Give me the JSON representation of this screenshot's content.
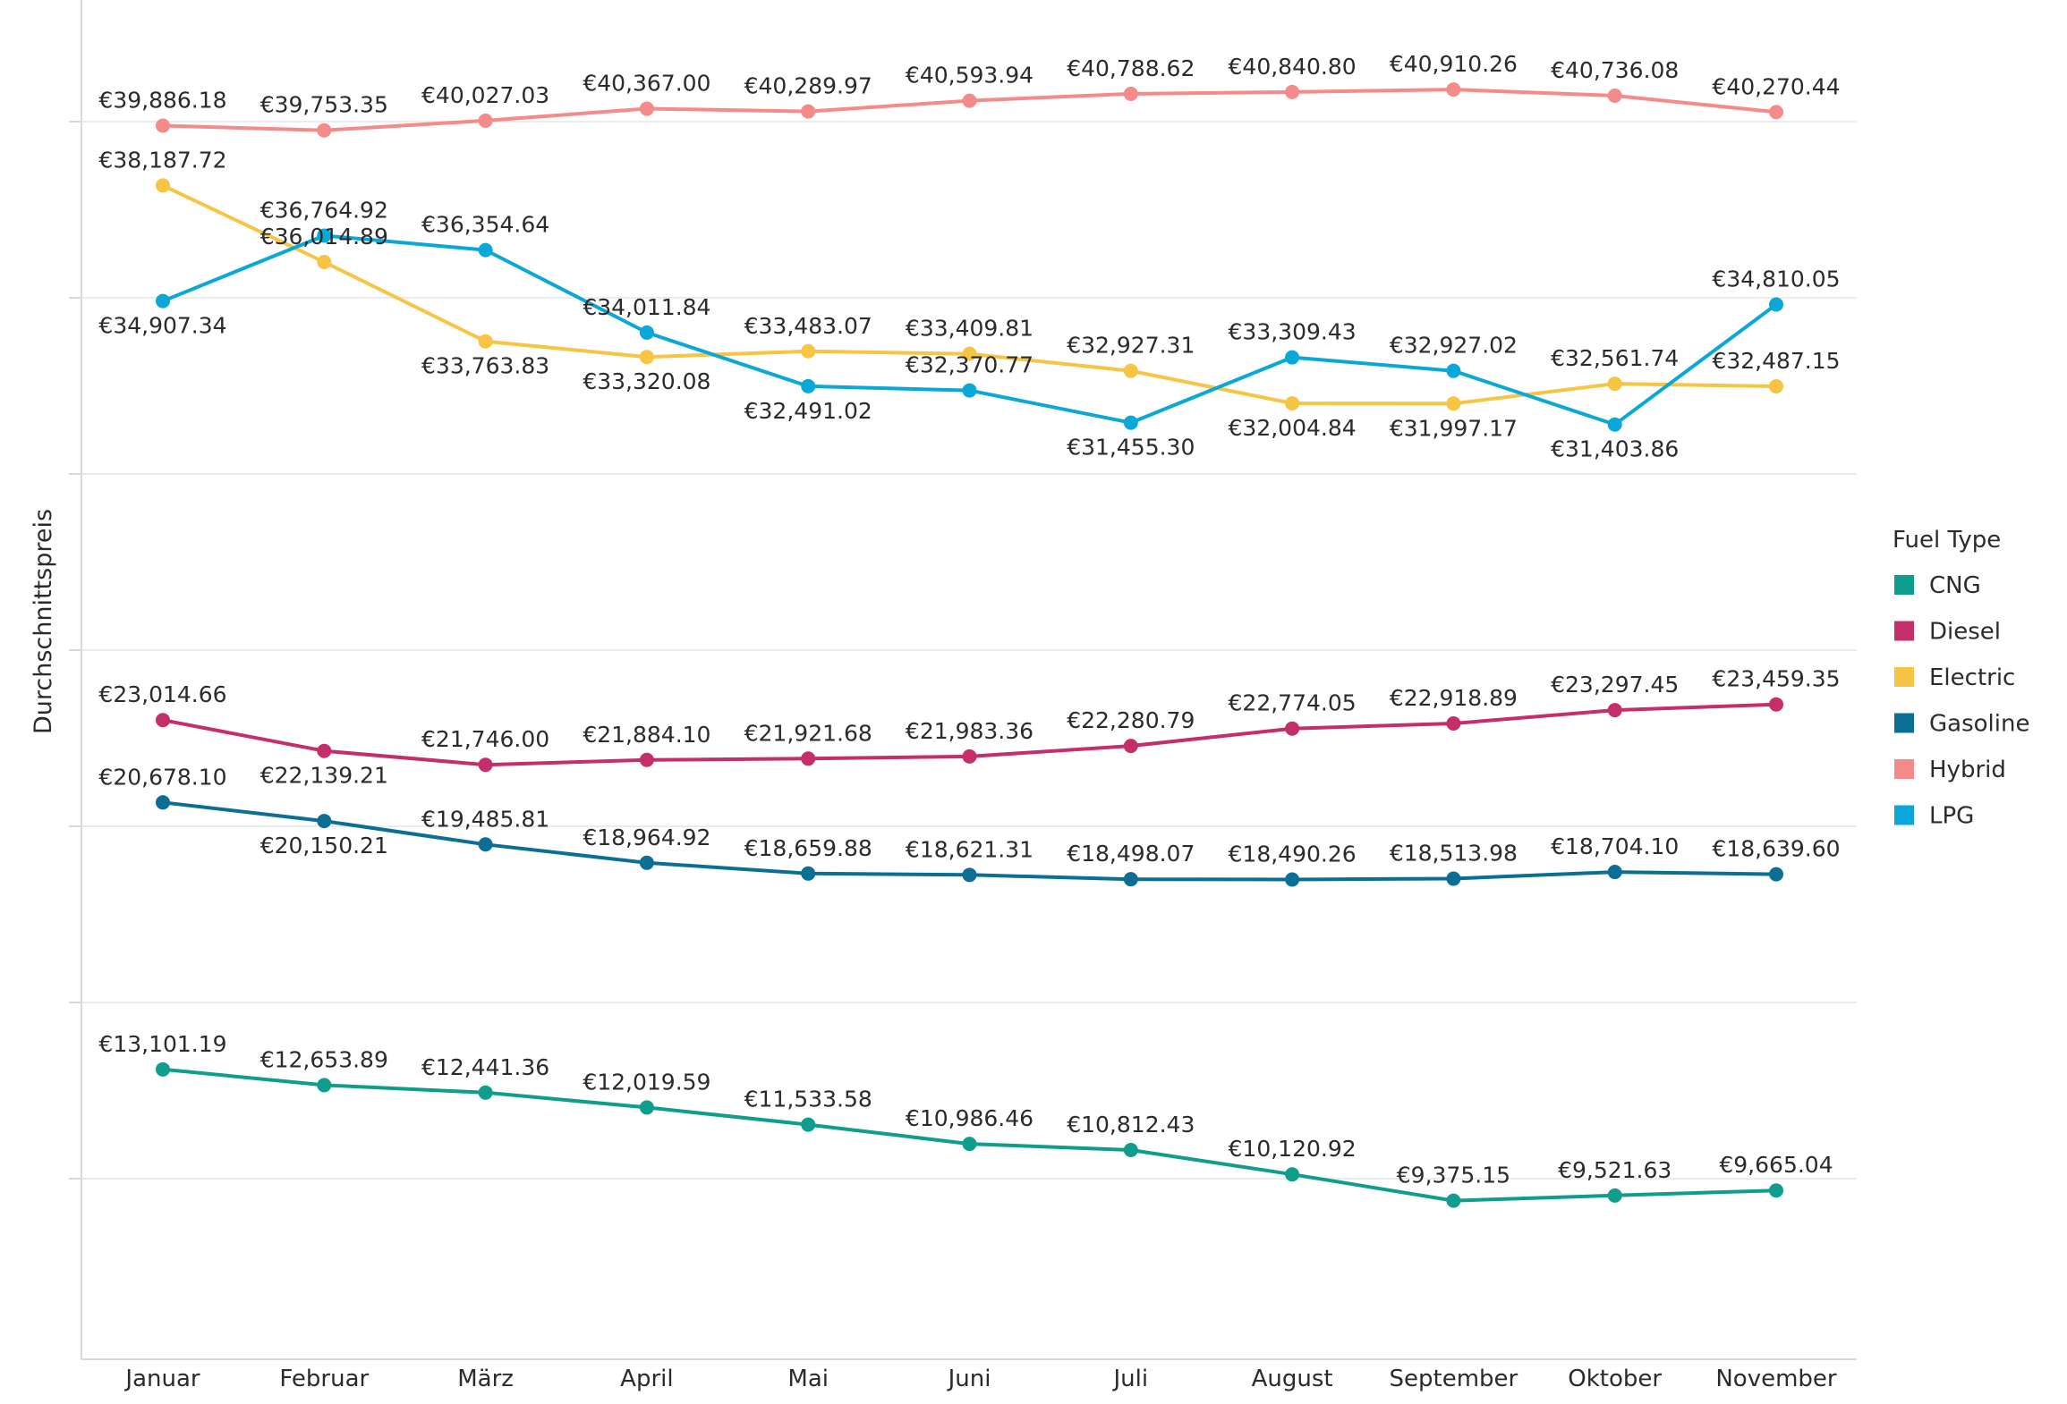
{
  "chart_data": {
    "type": "line",
    "title": "",
    "xlabel": "",
    "ylabel": "Durchschnittspreis",
    "ylim": [
      7000,
      43000
    ],
    "y_gridlines": [
      10000,
      15000,
      20000,
      25000,
      30000,
      35000,
      40000
    ],
    "y_tick_labels_visible": false,
    "grid": true,
    "legend": {
      "title": "Fuel Type",
      "placement": "right"
    },
    "categories": [
      "Januar",
      "Februar",
      "März",
      "April",
      "Mai",
      "Juni",
      "Juli",
      "August",
      "September",
      "Oktober",
      "November"
    ],
    "series": [
      {
        "name": "CNG",
        "color": "#0f9e8e",
        "values": [
          13101.19,
          12653.89,
          12441.36,
          12019.59,
          11533.58,
          10986.46,
          10812.43,
          10120.92,
          9375.15,
          9521.63,
          9665.04
        ],
        "labels": [
          "€13,101.19",
          "€12,653.89",
          "€12,441.36",
          "€12,019.59",
          "€11,533.58",
          "€10,986.46",
          "€10,812.43",
          "€10,120.92",
          "€9,375.15",
          "€9,521.63",
          "€9,665.04"
        ]
      },
      {
        "name": "Diesel",
        "color": "#c42e6b",
        "values": [
          23014.66,
          22139.21,
          21746.0,
          21884.1,
          21921.68,
          21983.36,
          22280.79,
          22774.05,
          22918.89,
          23297.45,
          23459.35
        ],
        "labels": [
          "€23,014.66",
          "€22,139.21",
          "€21,746.00",
          "€21,884.10",
          "€21,921.68",
          "€21,983.36",
          "€22,280.79",
          "€22,774.05",
          "€22,918.89",
          "€23,297.45",
          "€23,459.35"
        ]
      },
      {
        "name": "Electric",
        "color": "#f7c443",
        "values": [
          38187.72,
          36014.89,
          33763.83,
          33320.08,
          33483.07,
          33409.81,
          32927.31,
          32004.84,
          31997.17,
          32561.74,
          32487.15
        ],
        "labels": [
          "€38,187.72",
          "€36,014.89",
          "€33,763.83",
          "€33,320.08",
          "€33,483.07",
          "€33,409.81",
          "€32,927.31",
          "€32,004.84",
          "€31,997.17",
          "€32,561.74",
          "€32,487.15"
        ]
      },
      {
        "name": "Gasoline",
        "color": "#0b6e94",
        "values": [
          20678.1,
          20150.21,
          19485.81,
          18964.92,
          18659.88,
          18621.31,
          18498.07,
          18490.26,
          18513.98,
          18704.1,
          18639.6
        ],
        "labels": [
          "€20,678.10",
          "€20,150.21",
          "€19,485.81",
          "€18,964.92",
          "€18,659.88",
          "€18,621.31",
          "€18,498.07",
          "€18,490.26",
          "€18,513.98",
          "€18,704.10",
          "€18,639.60"
        ]
      },
      {
        "name": "Hybrid",
        "color": "#f58a8a",
        "values": [
          39886.18,
          39753.35,
          40027.03,
          40367.0,
          40289.97,
          40593.94,
          40788.62,
          40840.8,
          40910.26,
          40736.08,
          40270.44
        ],
        "labels": [
          "€39,886.18",
          "€39,753.35",
          "€40,027.03",
          "€40,367.00",
          "€40,289.97",
          "€40,593.94",
          "€40,788.62",
          "€40,840.80",
          "€40,910.26",
          "€40,736.08",
          "€40,270.44"
        ]
      },
      {
        "name": "LPG",
        "color": "#0aa8d8",
        "values": [
          34907.34,
          36764.92,
          36354.64,
          34011.84,
          32491.02,
          32370.77,
          31455.3,
          33309.43,
          32927.02,
          31403.86,
          34810.05
        ],
        "labels": [
          "€34,907.34",
          "€36,764.92",
          "€36,354.64",
          "€34,011.84",
          "€32,491.02",
          "€32,370.77",
          "€31,455.30",
          "€33,309.43",
          "€32,927.02",
          "€31,403.86",
          "€34,810.05"
        ]
      }
    ]
  }
}
